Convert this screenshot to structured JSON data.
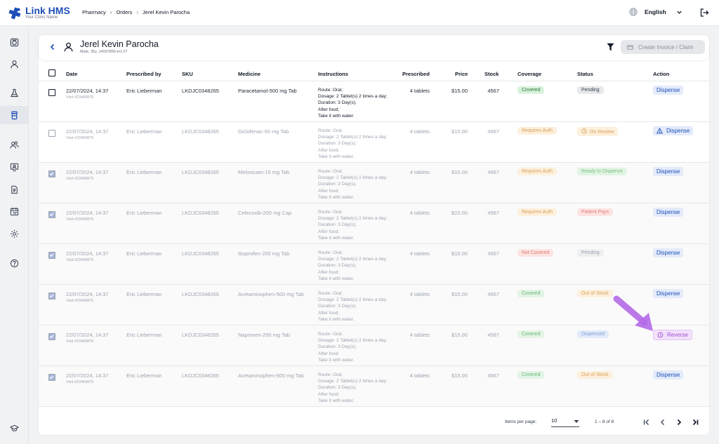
{
  "app": {
    "name": "Link HMS",
    "tagline": "Your Clinic Name"
  },
  "breadcrumb": [
    "Pharmacy",
    "Orders",
    "Jerel Kevin Parocha"
  ],
  "language": "English",
  "patient": {
    "name": "Jerel Kevin Parocha",
    "meta": "Male, 35y, 14097856-HJ-27"
  },
  "toolbar": {
    "create_invoice_label": "Create Invoice / Claim"
  },
  "table": {
    "columns": [
      "Date",
      "Prescribed by",
      "SKU",
      "Medicine",
      "Instructions",
      "Prescribed",
      "Price",
      "Stock",
      "Coverage",
      "Status",
      "Action"
    ],
    "rows": [
      {
        "date": "22/07/2024, 14:37",
        "visit": "Visit #23409875",
        "prescriber": "Eric Lieberman",
        "sku": "LKDJC0348265",
        "medicine": "Paracetamol-500 mg Tab",
        "instructions": [
          "Route: Oral;",
          "Dosage: 2 Tablet(s) 2 times a day;",
          "Duration: 3 Day(s);",
          "After food;",
          "Take it with water."
        ],
        "prescribed": "4 tablets",
        "price": "$15.00",
        "stock": "4567",
        "coverage": "Covered",
        "status": "Pending",
        "action": "Dispense"
      },
      {
        "date": "22/07/2024, 14:37",
        "visit": "Visit #23409875",
        "prescriber": "Eric Lieberman",
        "sku": "LKDJC0348265",
        "medicine": "Diclofenac-50 mg Tab",
        "instructions": [
          "Route: Oral;",
          "Dosage: 2 Tablet(s) 2 times a day;",
          "Duration: 3 Day(s);",
          "After food;",
          "Take it with water."
        ],
        "prescribed": "4 tablets",
        "price": "$15.00",
        "stock": "4567",
        "coverage": "Requires Auth",
        "status": "On Review",
        "action": "Dispense"
      },
      {
        "date": "22/07/2024, 14:37",
        "visit": "Visit #23409875",
        "prescriber": "Eric Lieberman",
        "sku": "LKDJC0348265",
        "medicine": "Meloxicam-15 mg Tab",
        "instructions": [
          "Route: Oral;",
          "Dosage: 2 Tablet(s) 2 times a day;",
          "Duration: 3 Day(s);",
          "After food;",
          "Take it with water."
        ],
        "prescribed": "4 tablets",
        "price": "$15.00",
        "stock": "4567",
        "coverage": "Requires Auth",
        "status": "Ready to Dispence",
        "action": "Dispense"
      },
      {
        "date": "22/07/2024, 14:37",
        "visit": "Visit #23409875",
        "prescriber": "Eric Lieberman",
        "sku": "LKDJC0348265",
        "medicine": "Celecoxib-200 mg Cap",
        "instructions": [
          "Route: Oral;",
          "Dosage: 2 Tablet(s) 2 times a day;",
          "Duration: 3 Day(s);",
          "After food;",
          "Take it with water."
        ],
        "prescribed": "4 tablets",
        "price": "$15.00",
        "stock": "4567",
        "coverage": "Requires Auth",
        "status": "Patient Pays",
        "action": "Dispense"
      },
      {
        "date": "22/07/2024, 14:37",
        "visit": "Visit #23409875",
        "prescriber": "Eric Lieberman",
        "sku": "LKDJC0348265",
        "medicine": "Ibuprofen-200 mg Tab",
        "instructions": [
          "Route: Oral;",
          "Dosage: 2 Tablet(s) 2 times a day;",
          "Duration: 3 Day(s);",
          "After food;",
          "Take it with water."
        ],
        "prescribed": "4 tablets",
        "price": "$15.00",
        "stock": "4567",
        "coverage": "Not Covered",
        "status": "Pending",
        "action": "Dispense"
      },
      {
        "date": "22/07/2024, 14:37",
        "visit": "Visit #23409875",
        "prescriber": "Eric Lieberman",
        "sku": "LKDJC0348265",
        "medicine": "Acetaminophen-500 mg Tab",
        "instructions": [
          "Route: Oral;",
          "Dosage: 2 Tablet(s) 2 times a day;",
          "Duration: 3 Day(s);",
          "After food;",
          "Take it with water."
        ],
        "prescribed": "4 tablets",
        "price": "$15.00",
        "stock": "4567",
        "coverage": "Covered",
        "status": "Out of Stock",
        "action": "Dispense"
      },
      {
        "date": "22/07/2024, 14:37",
        "visit": "Visit #23409875",
        "prescriber": "Eric Lieberman",
        "sku": "LKDJC0348265",
        "medicine": "Naproxen-250 mg Tab",
        "instructions": [
          "Route: Oral;",
          "Dosage: 2 Tablet(s) 2 times a day;",
          "Duration: 3 Day(s);",
          "After food;",
          "Take it with water."
        ],
        "prescribed": "4 tablets",
        "price": "$15.00",
        "stock": "4567",
        "coverage": "Covered",
        "status": "Dispenced",
        "action": "Reverse"
      },
      {
        "date": "22/07/2024, 14:37",
        "visit": "Visit #23409875",
        "prescriber": "Eric Lieberman",
        "sku": "LKDJC0348265",
        "medicine": "Acetaminophen-500 mg Tab",
        "instructions": [
          "Route: Oral;",
          "Dosage: 2 Tablet(s) 2 times a day;",
          "Duration: 3 Day(s);",
          "After food;",
          "Take it with water."
        ],
        "prescribed": "4 tablets",
        "price": "$15.00",
        "stock": "4567",
        "coverage": "Covered",
        "status": "Out of Stock",
        "action": "Dispense"
      }
    ]
  },
  "pagination": {
    "items_per_page_label": "Items per page:",
    "items_per_page": "10",
    "range": "1 – 8 of 8"
  },
  "colors": {
    "brand": "#1e4fb8",
    "highlight_arrow": "#b56ae8"
  }
}
